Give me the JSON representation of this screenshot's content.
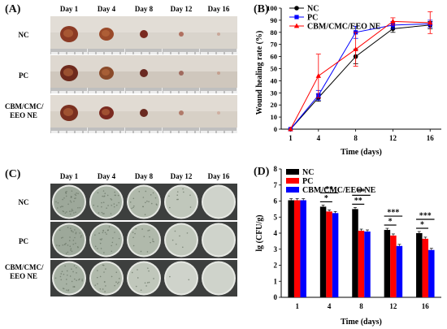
{
  "panels": {
    "a": {
      "label": "(A)"
    },
    "b": {
      "label": "(B)"
    },
    "c": {
      "label": "(C)"
    },
    "d": {
      "label": "(D)"
    }
  },
  "days": [
    "Day 1",
    "Day 4",
    "Day 8",
    "Day 12",
    "Day 16"
  ],
  "groups": [
    {
      "label_lines": [
        "NC"
      ]
    },
    {
      "label_lines": [
        "PC"
      ]
    },
    {
      "label_lines": [
        "CBM/CMC/",
        "EEO NE"
      ]
    }
  ],
  "colors": {
    "nc": "#000000",
    "pc": "#0000ff",
    "ne": "#ff0000"
  },
  "chart_data": [
    {
      "type": "line",
      "xlabel": "Time (days)",
      "ylabel": "Wound healing rate (%)",
      "x": [
        1,
        4,
        8,
        12,
        16
      ],
      "xticks": [
        "1",
        "4",
        "8",
        "12",
        "16"
      ],
      "ylim": [
        0,
        100
      ],
      "yticks": [
        "0",
        "10",
        "20",
        "30",
        "40",
        "50",
        "60",
        "70",
        "80",
        "90",
        "100"
      ],
      "legend": "top-left",
      "series": [
        {
          "name": "NC",
          "color": "#000000",
          "marker": "circle",
          "values": [
            0,
            26,
            60,
            83,
            86
          ],
          "errors": [
            0,
            3,
            6,
            3,
            3
          ]
        },
        {
          "name": "PC",
          "color": "#0000ff",
          "marker": "square",
          "values": [
            0,
            28,
            80,
            86,
            87
          ],
          "errors": [
            0,
            4,
            5,
            3,
            3
          ]
        },
        {
          "name": "CBM/CMC/EEO NE",
          "color": "#ff0000",
          "marker": "triangle",
          "values": [
            0,
            44,
            66,
            89,
            88
          ],
          "errors": [
            0,
            18,
            14,
            3,
            9
          ]
        }
      ]
    },
    {
      "type": "bar",
      "xlabel": "Time (days)",
      "ylabel": "lg (CFU/g)",
      "categories": [
        "1",
        "4",
        "8",
        "12",
        "16"
      ],
      "ylim": [
        0,
        8
      ],
      "yticks": [
        "0",
        "1",
        "2",
        "3",
        "4",
        "5",
        "6",
        "7",
        "8"
      ],
      "legend": "top-left",
      "series": [
        {
          "name": "NC",
          "color": "#000000",
          "values": [
            6.05,
            5.65,
            5.5,
            4.2,
            4.0
          ]
        },
        {
          "name": "PC",
          "color": "#ff0000",
          "values": [
            6.05,
            5.35,
            4.15,
            3.85,
            3.65
          ]
        },
        {
          "name": "CBM/CMC/EEO NE",
          "color": "#0000ff",
          "values": [
            6.05,
            5.25,
            4.1,
            3.2,
            2.95
          ]
        }
      ],
      "significance": [
        {
          "category": "4",
          "pairs": [
            {
              "label": "*",
              "level": 0
            },
            {
              "label": "**",
              "level": 1
            }
          ]
        },
        {
          "category": "8",
          "pairs": [
            {
              "label": "**",
              "level": 0
            },
            {
              "label": "**",
              "level": 1
            }
          ]
        },
        {
          "category": "12",
          "pairs": [
            {
              "label": "*",
              "level": 0
            },
            {
              "label": "***",
              "level": 1
            }
          ]
        },
        {
          "category": "16",
          "pairs": [
            {
              "label": "*",
              "level": 0
            },
            {
              "label": "***",
              "level": 1
            }
          ]
        }
      ]
    }
  ]
}
